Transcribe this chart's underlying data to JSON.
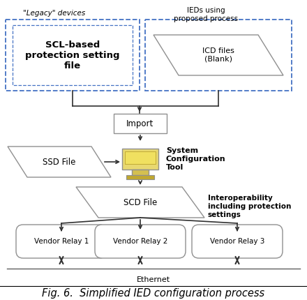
{
  "title": "Fig. 6.  Simplified IED configuration process",
  "background": "#ffffff",
  "legacy_label": "\"Legacy\" devices",
  "ieds_label": "IEDs using\nproposed process",
  "scl_box_text": "SCL-based\nprotection setting\nfile",
  "icd_para_text": "ICD files\n(Blank)",
  "import_box_text": "Import",
  "sct_label": "System\nConfiguration\nTool",
  "ssd_para_text": "SSD File",
  "scd_para_text": "SCD File",
  "interop_label": "Interoperability\nincluding protection\nsettings",
  "relay1_text": "Vendor Relay 1",
  "relay2_text": "Vendor Relay 2",
  "relay3_text": "Vendor Relay 3",
  "ethernet_label": "Ethernet",
  "dashed_blue": "#4472C4",
  "sct_monitor_color": "#e8d870",
  "sct_monitor_outer": "#c8b840",
  "sct_base_color": "#d4c050",
  "arrow_color": "#303030"
}
